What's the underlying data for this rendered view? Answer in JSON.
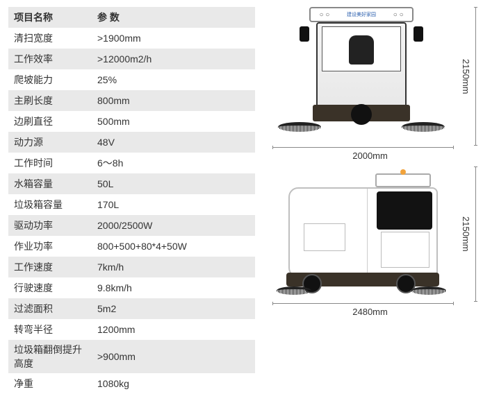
{
  "table": {
    "header_name": "项目名称",
    "header_value": "参 数",
    "rows": [
      {
        "name": "清扫宽度",
        "value": ">1900mm"
      },
      {
        "name": "工作效率",
        "value": ">12000m2/h"
      },
      {
        "name": "爬坡能力",
        "value": "25%"
      },
      {
        "name": "主刷长度",
        "value": "800mm"
      },
      {
        "name": "边刷直径",
        "value": "500mm"
      },
      {
        "name": "动力源",
        "value": "48V"
      },
      {
        "name": "工作时间",
        "value": "6～8h"
      },
      {
        "name": "水箱容量",
        "value": "50L"
      },
      {
        "name": "垃圾箱容量",
        "value": "170L"
      },
      {
        "name": "驱动功率",
        "value": "2000/2500W"
      },
      {
        "name": "作业功率",
        "value": "800+500+80*4+50W"
      },
      {
        "name": "工作速度",
        "value": "7km/h"
      },
      {
        "name": "行驶速度",
        "value": "9.8km/h"
      },
      {
        "name": "过滤面积",
        "value": "5m2"
      },
      {
        "name": "转弯半径",
        "value": "1200mm"
      },
      {
        "name": "垃圾箱翻倒提升高度",
        "value": ">900mm"
      },
      {
        "name": "净重",
        "value": "1080kg"
      }
    ]
  },
  "vehicle_front": {
    "roof_text": "建设美好家园",
    "width_label": "2000mm",
    "height_label": "2150mm"
  },
  "vehicle_side": {
    "width_label": "2480mm",
    "height_label": "2150mm"
  },
  "colors": {
    "row_alt": "#e9e9e9",
    "text": "#333333",
    "base": "#3a3228",
    "roof_brand": "#2b5fae"
  }
}
